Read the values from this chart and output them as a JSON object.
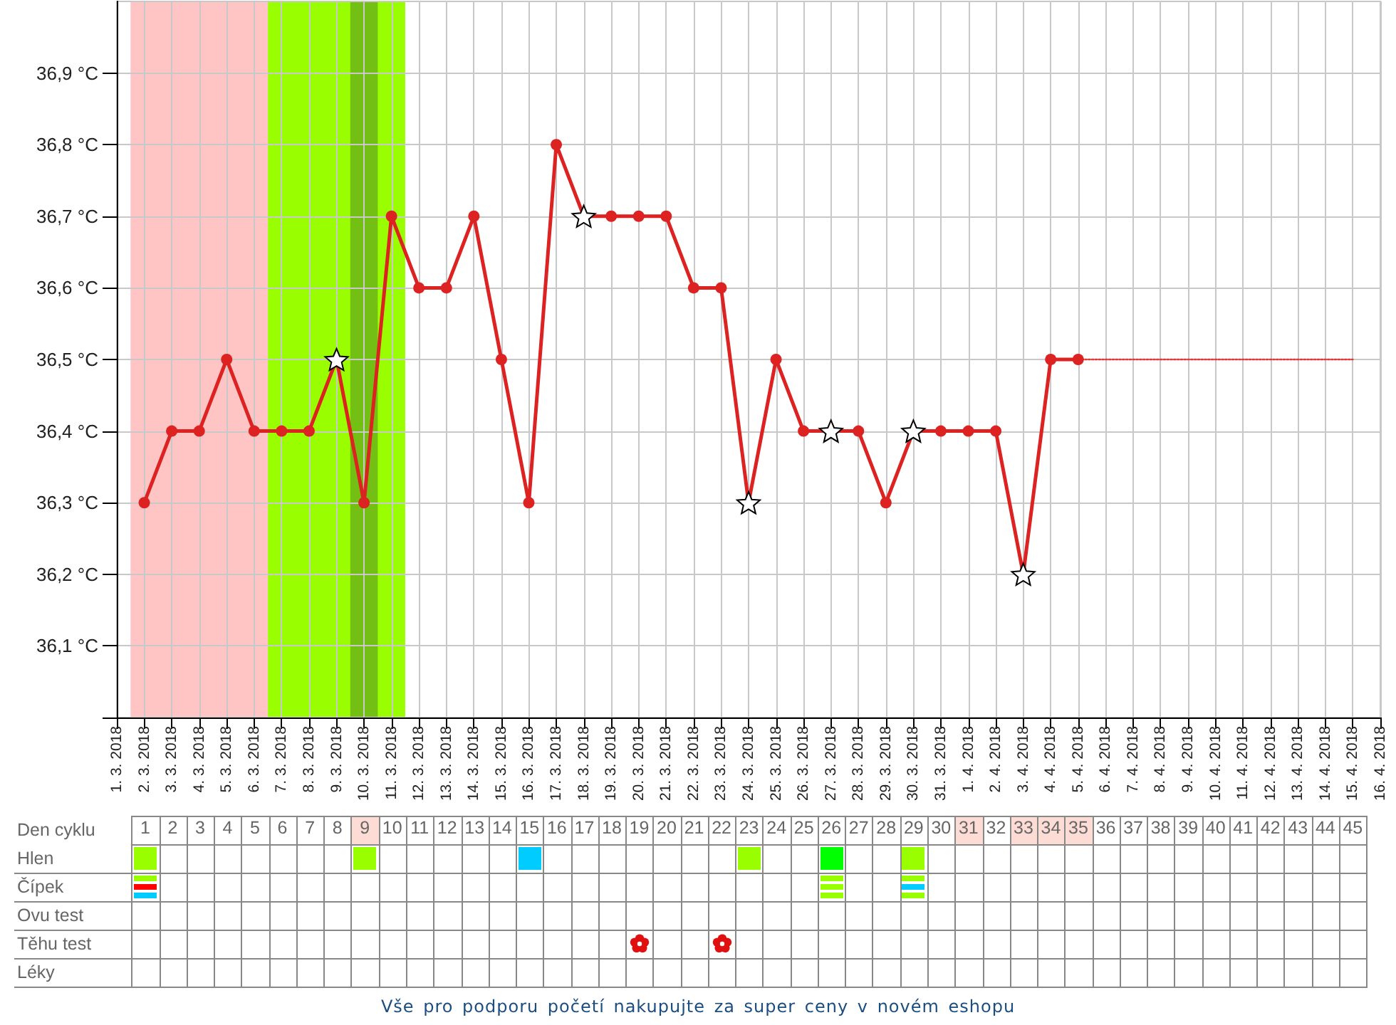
{
  "chart_data": {
    "type": "line",
    "categories": [
      "1. 3. 2018",
      "2. 3. 2018",
      "3. 3. 2018",
      "4. 3. 2018",
      "5. 3. 2018",
      "6. 3. 2018",
      "7. 3. 2018",
      "8. 3. 2018",
      "9. 3. 2018",
      "10. 3. 2018",
      "11. 3. 2018",
      "12. 3. 2018",
      "13. 3. 2018",
      "14. 3. 2018",
      "15. 3. 2018",
      "16. 3. 2018",
      "17. 3. 2018",
      "18. 3. 2018",
      "19. 3. 2018",
      "20. 3. 2018",
      "21. 3. 2018",
      "22. 3. 2018",
      "23. 3. 2018",
      "24. 3. 2018",
      "25. 3. 2018",
      "26. 3. 2018",
      "27. 3. 2018",
      "28. 3. 2018",
      "29. 3. 2018",
      "30. 3. 2018",
      "31. 3. 2018",
      "1. 4. 2018",
      "2. 4. 2018",
      "3. 4. 2018",
      "4. 4. 2018",
      "5. 4. 2018",
      "6. 4. 2018",
      "7. 4. 2018",
      "8. 4. 2018",
      "9. 4. 2018",
      "10. 4. 2018",
      "11. 4. 2018",
      "12. 4. 2018",
      "13. 4. 2018",
      "14. 4. 2018",
      "15. 4. 2018",
      "16. 4. 2018"
    ],
    "ylim": [
      36,
      37
    ],
    "yticks": [
      {
        "value": 36,
        "label": null
      },
      {
        "value": 36.1,
        "label": "36,1 °C"
      },
      {
        "value": 36.2,
        "label": "36,2 °C"
      },
      {
        "value": 36.3,
        "label": "36,3 °C"
      },
      {
        "value": 36.4,
        "label": "36,4 °C"
      },
      {
        "value": 36.5,
        "label": "36,5 °C"
      },
      {
        "value": 36.6,
        "label": "36,6 °C"
      },
      {
        "value": 36.7,
        "label": "36,7 °C"
      },
      {
        "value": 36.8,
        "label": "36,8 °C"
      },
      {
        "value": 36.9,
        "label": "36,9 °C"
      }
    ],
    "x2label": "Den cyklu",
    "x2lim": [
      0.5,
      45.5
    ],
    "x2ticks": [
      1,
      2,
      3,
      4,
      5,
      6,
      7,
      8,
      9,
      10,
      11,
      12,
      13,
      14,
      15,
      16,
      17,
      18,
      19,
      20,
      21,
      22,
      23,
      24,
      25,
      26,
      27,
      28,
      29,
      30,
      31,
      32,
      33,
      34,
      35,
      36,
      37,
      38,
      39,
      40,
      41,
      42,
      43,
      44,
      45
    ],
    "grid": true,
    "bands": [
      {
        "axis": "x",
        "from": "2. 3. 2018",
        "to": "6. 3. 2018",
        "color": "#ffc4c4"
      },
      {
        "axis": "x",
        "from": "7. 3. 2018",
        "to": "11. 3. 2018",
        "color": "#99ff00"
      },
      {
        "axis": "x",
        "from": "10. 3. 2018",
        "to": "10. 3. 2018",
        "color": "#74bf14"
      }
    ],
    "series": [
      {
        "type": "line",
        "color": "#dd2222",
        "marker": "circle",
        "values": [
          null,
          36.3,
          36.4,
          36.4,
          36.5,
          36.4,
          36.4,
          36.4,
          36.5,
          36.3,
          36.7,
          36.6,
          36.6,
          36.7,
          36.5,
          36.3,
          36.8,
          36.7,
          36.7,
          36.7,
          36.7,
          36.6,
          36.6,
          36.3,
          36.5,
          36.4,
          36.4,
          36.4,
          36.3,
          36.4,
          36.4,
          36.4,
          36.4,
          36.2,
          36.5,
          36.5,
          null,
          null,
          null,
          null,
          null,
          null,
          null,
          null,
          null,
          null,
          null
        ]
      },
      {
        "type": "scatter",
        "color": "#ffffff",
        "marker": "star",
        "values": [
          null,
          null,
          null,
          null,
          null,
          null,
          null,
          null,
          36.5,
          null,
          null,
          null,
          null,
          null,
          null,
          null,
          null,
          36.7,
          null,
          null,
          null,
          null,
          null,
          36.3,
          null,
          null,
          36.4,
          null,
          null,
          36.4,
          null,
          null,
          null,
          36.2,
          null,
          null,
          null,
          null,
          null,
          null,
          null,
          null,
          null,
          null,
          null,
          null,
          null
        ]
      },
      {
        "type": "line",
        "color": "#e03a3a",
        "marker": "none",
        "line_style": "dotted",
        "values": [
          null,
          null,
          null,
          null,
          null,
          null,
          null,
          null,
          null,
          null,
          null,
          null,
          null,
          null,
          null,
          null,
          null,
          null,
          null,
          null,
          null,
          null,
          null,
          null,
          null,
          null,
          null,
          null,
          null,
          null,
          null,
          null,
          null,
          null,
          null,
          36.5,
          36.5,
          36.5,
          36.5,
          36.5,
          36.5,
          36.5,
          36.5,
          36.5,
          36.5,
          36.5,
          null
        ]
      }
    ],
    "annotations": [
      "Hlen",
      "Čípek",
      "Ovu test",
      "Těhu test",
      "Léky",
      "Vše pro podporu početí nakupujte za super ceny v novém eshopu"
    ]
  }
}
